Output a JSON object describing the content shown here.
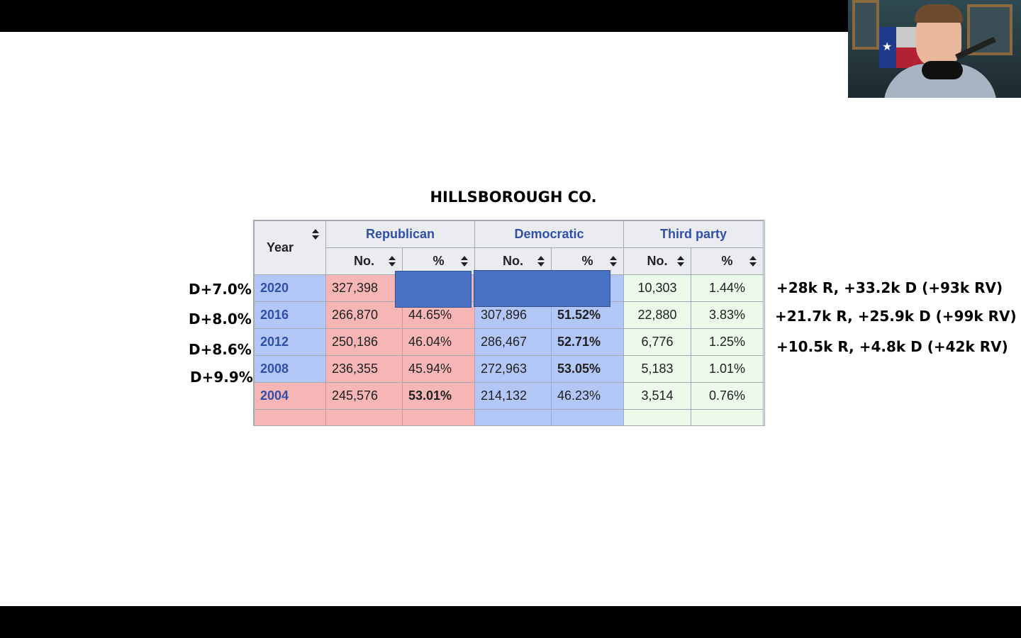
{
  "title": "HILLSBOROUGH CO.",
  "table": {
    "year_header": "Year",
    "party_headers": [
      "Republican",
      "Democratic",
      "Third party"
    ],
    "sub_headers": [
      "No.",
      "%",
      "No.",
      "%",
      "No.",
      "%"
    ],
    "rows": [
      {
        "year": "2020",
        "rep_no": "327,398",
        "rep_pct": "",
        "dem_no": "",
        "dem_pct": "",
        "oth_no": "10,303",
        "oth_pct": "1.44%",
        "winner": "democratic"
      },
      {
        "year": "2016",
        "rep_no": "266,870",
        "rep_pct": "44.65%",
        "dem_no": "307,896",
        "dem_pct": "51.52%",
        "oth_no": "22,880",
        "oth_pct": "3.83%",
        "winner": "democratic"
      },
      {
        "year": "2012",
        "rep_no": "250,186",
        "rep_pct": "46.04%",
        "dem_no": "286,467",
        "dem_pct": "52.71%",
        "oth_no": "6,776",
        "oth_pct": "1.25%",
        "winner": "democratic"
      },
      {
        "year": "2008",
        "rep_no": "236,355",
        "rep_pct": "45.94%",
        "dem_no": "272,963",
        "dem_pct": "53.05%",
        "oth_no": "5,183",
        "oth_pct": "1.01%",
        "winner": "democratic"
      },
      {
        "year": "2004",
        "rep_no": "245,576",
        "rep_pct": "53.01%",
        "dem_no": "214,132",
        "dem_pct": "46.23%",
        "oth_no": "3,514",
        "oth_pct": "0.76%",
        "winner": "republican"
      }
    ]
  },
  "margins": [
    "D+7.0%",
    "D+8.0%",
    "D+8.6%",
    "D+9.9%"
  ],
  "notes": [
    "+28k R, +33.2k D (+93k RV)",
    "+21.7k R, +25.9k D (+99k RV)",
    "+10.5k R, +4.8k D (+42k RV)"
  ],
  "colors": {
    "republican_bg": "#f7b6b6",
    "democratic_bg": "#b3c7f7",
    "third_party_bg": "#ecfbe9",
    "redaction": "#4a72c4",
    "header_link": "#3050a8"
  }
}
